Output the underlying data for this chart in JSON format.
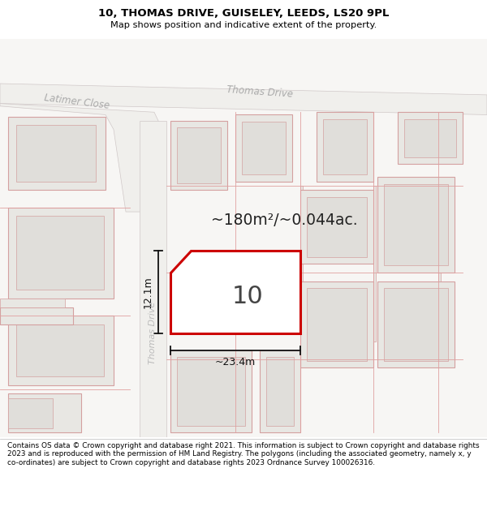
{
  "title_line1": "10, THOMAS DRIVE, GUISELEY, LEEDS, LS20 9PL",
  "title_line2": "Map shows position and indicative extent of the property.",
  "footer_text": "Contains OS data © Crown copyright and database right 2021. This information is subject to Crown copyright and database rights 2023 and is reproduced with the permission of HM Land Registry. The polygons (including the associated geometry, namely x, y co-ordinates) are subject to Crown copyright and database rights 2023 Ordnance Survey 100026316.",
  "plot_outline_color": "#cc0000",
  "road_label_diag": "Thomas Drive",
  "road_label_diag2": "Latimer Close",
  "road_label_vert": "Thomas Drive",
  "area_text": "~180m²/~0.044ac.",
  "number_text": "10",
  "dim_width": "~23.4m",
  "dim_height": "12.1m",
  "map_bg": "#f7f6f4",
  "block_fill": "#e8e7e3",
  "block_edge": "#d4a0a0",
  "road_fill": "#f0efec",
  "road_edge": "#c8a8a8",
  "header_bg": "#ffffff",
  "footer_bg": "#ffffff"
}
